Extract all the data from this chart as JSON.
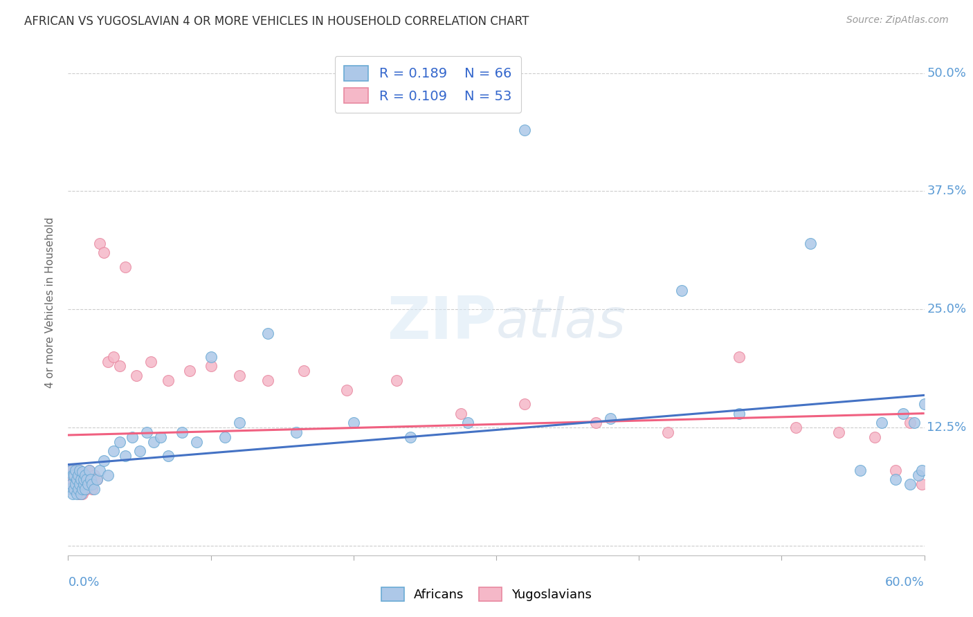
{
  "title": "AFRICAN VS YUGOSLAVIAN 4 OR MORE VEHICLES IN HOUSEHOLD CORRELATION CHART",
  "source": "Source: ZipAtlas.com",
  "ylabel": "4 or more Vehicles in Household",
  "xlim": [
    0.0,
    0.6
  ],
  "ylim": [
    -0.01,
    0.525
  ],
  "ytick_vals": [
    0.0,
    0.125,
    0.25,
    0.375,
    0.5
  ],
  "ytick_labels": [
    "",
    "12.5%",
    "25.0%",
    "37.5%",
    "50.0%"
  ],
  "xtick_vals": [
    0.0,
    0.1,
    0.2,
    0.3,
    0.4,
    0.5,
    0.6
  ],
  "color_african_fill": "#adc8e8",
  "color_african_edge": "#6aaad4",
  "color_yugoslav_fill": "#f5b8c8",
  "color_yugoslav_edge": "#e888a0",
  "color_african_line": "#4472c4",
  "color_yugoslav_line": "#f06080",
  "african_x": [
    0.001,
    0.002,
    0.002,
    0.003,
    0.003,
    0.004,
    0.004,
    0.005,
    0.005,
    0.006,
    0.006,
    0.007,
    0.007,
    0.008,
    0.008,
    0.009,
    0.009,
    0.01,
    0.01,
    0.011,
    0.011,
    0.012,
    0.012,
    0.013,
    0.014,
    0.015,
    0.016,
    0.017,
    0.018,
    0.02,
    0.022,
    0.025,
    0.028,
    0.032,
    0.036,
    0.04,
    0.045,
    0.05,
    0.055,
    0.06,
    0.065,
    0.07,
    0.08,
    0.09,
    0.1,
    0.11,
    0.12,
    0.14,
    0.16,
    0.2,
    0.24,
    0.28,
    0.32,
    0.38,
    0.43,
    0.47,
    0.52,
    0.555,
    0.57,
    0.58,
    0.585,
    0.59,
    0.593,
    0.596,
    0.598,
    0.6
  ],
  "african_y": [
    0.06,
    0.065,
    0.08,
    0.055,
    0.075,
    0.06,
    0.075,
    0.065,
    0.08,
    0.055,
    0.07,
    0.06,
    0.075,
    0.065,
    0.08,
    0.055,
    0.07,
    0.06,
    0.078,
    0.065,
    0.07,
    0.06,
    0.075,
    0.07,
    0.065,
    0.08,
    0.07,
    0.065,
    0.06,
    0.07,
    0.08,
    0.09,
    0.075,
    0.1,
    0.11,
    0.095,
    0.115,
    0.1,
    0.12,
    0.11,
    0.115,
    0.095,
    0.12,
    0.11,
    0.2,
    0.115,
    0.13,
    0.225,
    0.12,
    0.13,
    0.115,
    0.13,
    0.44,
    0.135,
    0.27,
    0.14,
    0.32,
    0.08,
    0.13,
    0.07,
    0.14,
    0.065,
    0.13,
    0.075,
    0.08,
    0.15
  ],
  "yugoslav_x": [
    0.001,
    0.002,
    0.002,
    0.003,
    0.004,
    0.004,
    0.005,
    0.005,
    0.006,
    0.006,
    0.007,
    0.007,
    0.008,
    0.008,
    0.009,
    0.01,
    0.01,
    0.011,
    0.012,
    0.013,
    0.014,
    0.015,
    0.016,
    0.017,
    0.018,
    0.02,
    0.022,
    0.025,
    0.028,
    0.032,
    0.036,
    0.04,
    0.048,
    0.058,
    0.07,
    0.085,
    0.1,
    0.12,
    0.14,
    0.165,
    0.195,
    0.23,
    0.275,
    0.32,
    0.37,
    0.42,
    0.47,
    0.51,
    0.54,
    0.565,
    0.58,
    0.59,
    0.598
  ],
  "yugoslav_y": [
    0.07,
    0.065,
    0.08,
    0.06,
    0.07,
    0.08,
    0.06,
    0.075,
    0.065,
    0.07,
    0.06,
    0.075,
    0.055,
    0.08,
    0.065,
    0.055,
    0.075,
    0.065,
    0.07,
    0.06,
    0.075,
    0.08,
    0.065,
    0.06,
    0.075,
    0.07,
    0.32,
    0.31,
    0.195,
    0.2,
    0.19,
    0.295,
    0.18,
    0.195,
    0.175,
    0.185,
    0.19,
    0.18,
    0.175,
    0.185,
    0.165,
    0.175,
    0.14,
    0.15,
    0.13,
    0.12,
    0.2,
    0.125,
    0.12,
    0.115,
    0.08,
    0.13,
    0.065
  ]
}
